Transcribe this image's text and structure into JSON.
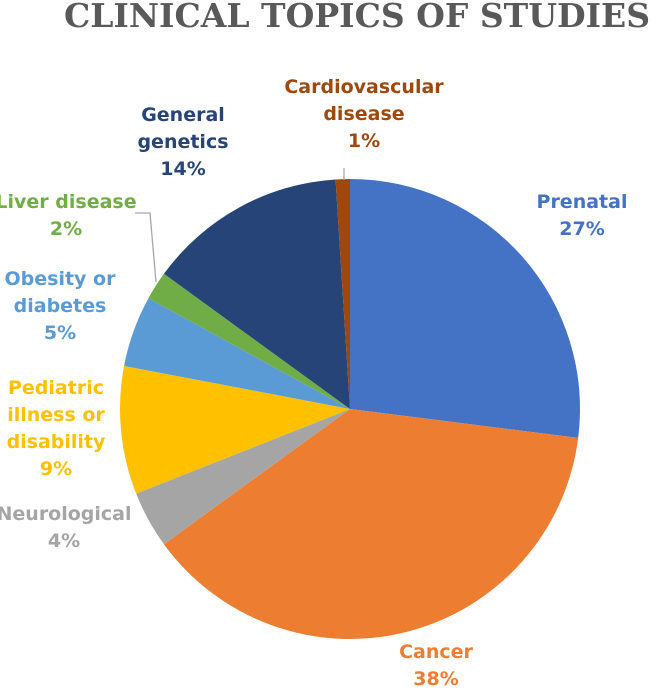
{
  "chart_data": {
    "type": "pie",
    "title": "CLINICAL TOPICS OF STUDIES",
    "start_angle_deg": 0,
    "direction": "clockwise",
    "slices": [
      {
        "key": "prenatal",
        "label_lines": [
          "Prenatal"
        ],
        "pct_label": "27%",
        "value": 27,
        "color": "#4472C4",
        "label_color": "#4472C4"
      },
      {
        "key": "cancer",
        "label_lines": [
          "Cancer"
        ],
        "pct_label": "38%",
        "value": 38,
        "color": "#ED7D31",
        "label_color": "#ED7D31"
      },
      {
        "key": "neurological",
        "label_lines": [
          "Neurological"
        ],
        "pct_label": "4%",
        "value": 4,
        "color": "#A5A5A5",
        "label_color": "#A5A5A5"
      },
      {
        "key": "pediatric",
        "label_lines": [
          "Pediatric",
          "illness or",
          "disability"
        ],
        "pct_label": "9%",
        "value": 9,
        "color": "#FFC000",
        "label_color": "#FFC000"
      },
      {
        "key": "obesity",
        "label_lines": [
          "Obesity or",
          "diabetes"
        ],
        "pct_label": "5%",
        "value": 5,
        "color": "#5B9BD5",
        "label_color": "#5B9BD5"
      },
      {
        "key": "liver",
        "label_lines": [
          "Liver disease"
        ],
        "pct_label": "2%",
        "value": 2,
        "color": "#70AD47",
        "label_color": "#70AD47"
      },
      {
        "key": "general-genetics",
        "label_lines": [
          "General",
          "genetics"
        ],
        "pct_label": "14%",
        "value": 14,
        "color": "#264478",
        "label_color": "#264478"
      },
      {
        "key": "cardiovascular",
        "label_lines": [
          "Cardiovascular",
          "disease"
        ],
        "pct_label": "1%",
        "value": 1,
        "color": "#9E480E",
        "label_color": "#9E480E"
      }
    ]
  }
}
